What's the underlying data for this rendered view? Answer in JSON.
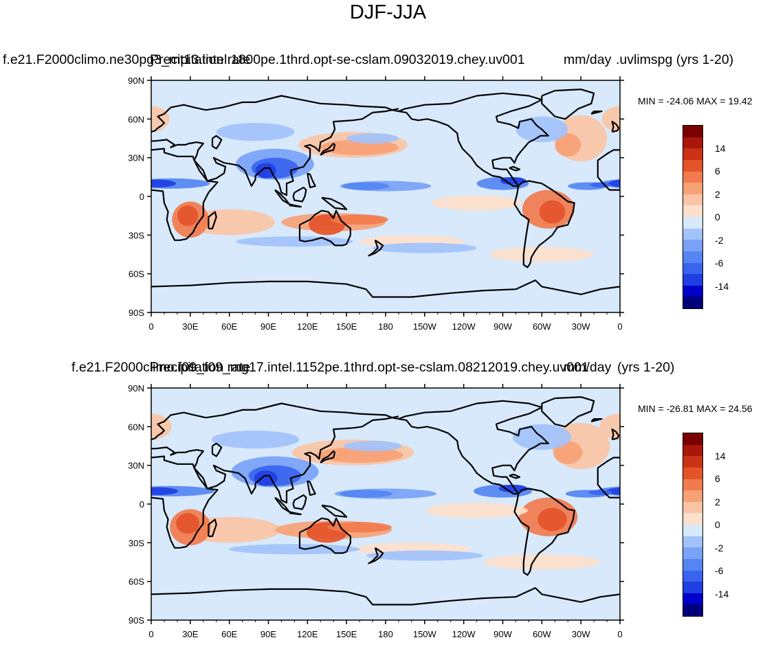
{
  "main_title": "DJF-JJA",
  "colors": {
    "ocean_bg": "#d7e9fb",
    "coast": "#000000",
    "palette": [
      "#00007a",
      "#0000c8",
      "#1f3fe2",
      "#3a64ee",
      "#5585f2",
      "#7aa2f7",
      "#a2c2fb",
      "#d7e9fb",
      "#fde0cc",
      "#fbc4a6",
      "#f7a176",
      "#f17b4e",
      "#e4542a",
      "#cc3216",
      "#a8180a",
      "#7a0000"
    ]
  },
  "panels": [
    {
      "caption_left": "f.e21.F2000climo.ne30pg3_mt13.intel.1800pe.1thrd.opt-se-cslam.09032019.chey.uv001",
      "caption_center": "Precipitation rate",
      "caption_right": "mm/day",
      "caption_suffix": ".uvlimspg (yrs 1-20)",
      "minmax": "MIN = -24.06 MAX =  19.42"
    },
    {
      "caption_left": "f.e21.F2000climo.f09_f09_mg17.intel.1152pe.1thrd.opt-se-cslam.08212019.chey.uv001",
      "caption_center": "Precipitation rate",
      "caption_right": "mm/day",
      "caption_suffix": " (yrs 1-20)",
      "minmax": "MIN = -26.81 MAX =  24.56"
    }
  ],
  "axes": {
    "lon_labels": [
      "0",
      "30E",
      "60E",
      "90E",
      "120E",
      "150E",
      "180",
      "150W",
      "120W",
      "90W",
      "60W",
      "30W",
      "0"
    ],
    "lat_labels": [
      "90N",
      "60N",
      "30N",
      "0",
      "30S",
      "60S",
      "90S"
    ]
  },
  "colorbar_labels": [
    "14",
    "6",
    "2",
    "0",
    "-2",
    "-6",
    "-14"
  ]
}
